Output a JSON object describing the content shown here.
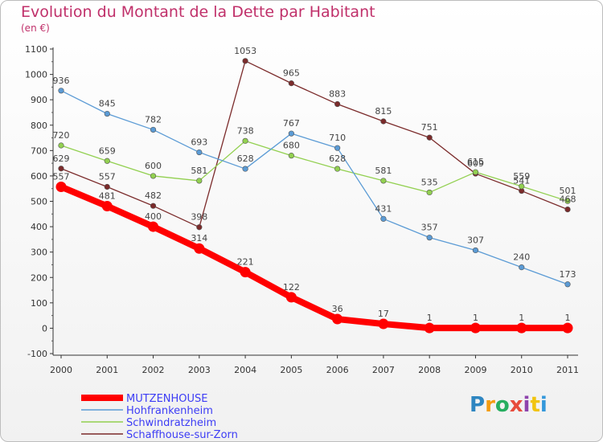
{
  "chart_data": {
    "type": "line",
    "title": "Evolution du Montant de la Dette par Habitant",
    "unit_label": "(en €)",
    "x": [
      "2000",
      "2001",
      "2002",
      "2003",
      "2004",
      "2005",
      "2006",
      "2007",
      "2008",
      "2009",
      "2010",
      "2011"
    ],
    "yticks": [
      "1100",
      "1000",
      "900",
      "800",
      "700",
      "600",
      "500",
      "400",
      "300",
      "200",
      "100",
      "0",
      "-100"
    ],
    "ylim": [
      -100,
      1100
    ],
    "series": [
      {
        "name": "MUTZENHOUSE",
        "color": "#ff0000",
        "values": [
          557,
          481,
          400,
          314,
          221,
          122,
          36,
          17,
          1,
          1,
          1,
          1
        ]
      },
      {
        "name": "Hohfrankenheim",
        "color": "#5b9bd5",
        "values": [
          936,
          845,
          782,
          693,
          628,
          767,
          710,
          431,
          357,
          307,
          240,
          173
        ]
      },
      {
        "name": "Schwindratzheim",
        "color": "#92d050",
        "values": [
          720,
          659,
          600,
          581,
          738,
          680,
          628,
          581,
          535,
          615,
          559,
          501
        ]
      },
      {
        "name": "Schaffhouse-sur-Zorn",
        "color": "#7b2b2b",
        "values": [
          629,
          557,
          482,
          398,
          1053,
          965,
          883,
          815,
          751,
          609,
          541,
          468
        ]
      }
    ],
    "legend_position": "bottom-left",
    "grid": false
  },
  "logo": {
    "text": "Proxiti",
    "letters": [
      "P",
      "r",
      "o",
      "x",
      "i",
      "t",
      "i"
    ],
    "colors": [
      "#2e86c1",
      "#f39c12",
      "#27ae60",
      "#e74c3c",
      "#8e44ad",
      "#f1c40f",
      "#3498db"
    ]
  }
}
